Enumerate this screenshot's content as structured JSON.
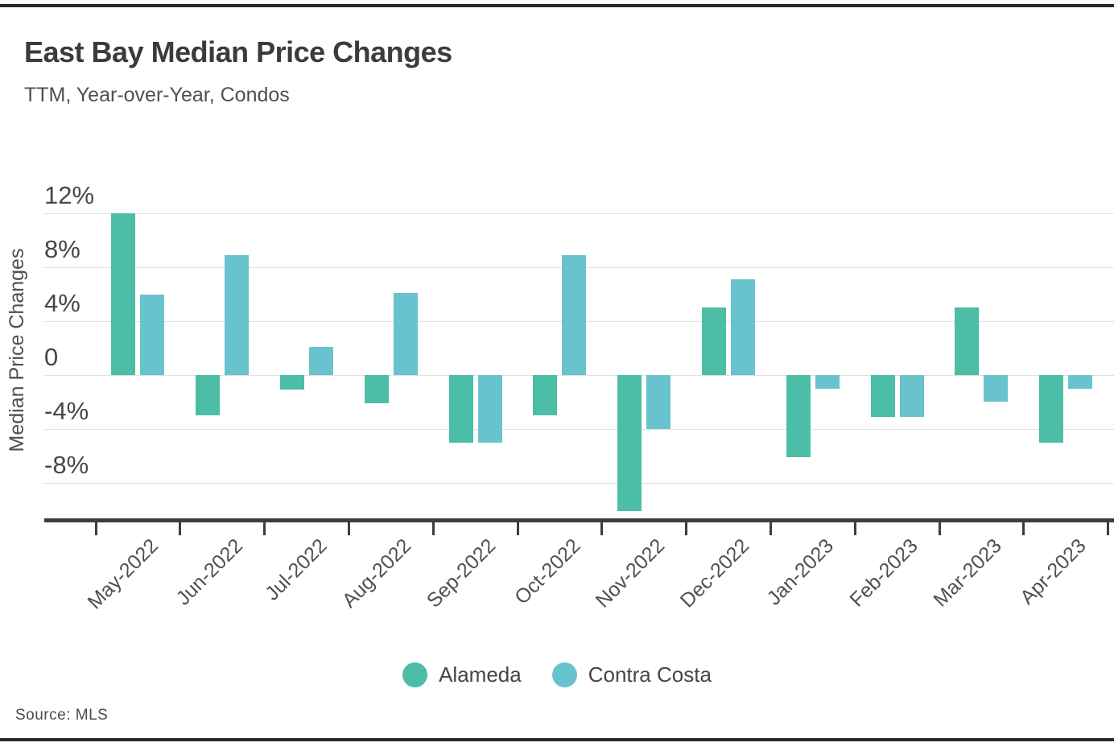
{
  "page": {
    "title": "East Bay Median Price Changes",
    "subtitle": "TTM, Year-over-Year, Condos",
    "source": "Source: MLS"
  },
  "chart_data": {
    "type": "bar",
    "title": "East Bay Median Price Changes",
    "subtitle": "TTM, Year-over-Year, Condos",
    "xlabel": "",
    "ylabel": "Median Price Changes",
    "categories": [
      "May-2022",
      "Jun-2022",
      "Jul-2022",
      "Aug-2022",
      "Sep-2022",
      "Oct-2022",
      "Nov-2022",
      "Dec-2022",
      "Jan-2023",
      "Feb-2023",
      "Mar-2023",
      "Apr-2023"
    ],
    "series": [
      {
        "name": "Alameda",
        "color": "#4cbda7",
        "values": [
          12.0,
          -3.0,
          -1.1,
          -2.1,
          -5.0,
          -3.0,
          -10.1,
          5.0,
          -6.1,
          -3.1,
          5.0,
          -5.0
        ]
      },
      {
        "name": "Contra Costa",
        "color": "#69c3ce",
        "values": [
          6.0,
          8.9,
          2.1,
          6.1,
          -5.0,
          8.9,
          -4.0,
          7.1,
          -1.0,
          -3.1,
          -2.0,
          -1.0
        ]
      }
    ],
    "y_ticks": [
      "12%",
      "8%",
      "4%",
      "0",
      "-4%",
      "-8%"
    ],
    "y_tick_values": [
      12,
      8,
      4,
      0,
      -4,
      -8
    ],
    "unit": "%",
    "ylim": [
      -10.7,
      13.8
    ],
    "grid": true,
    "legend_position": "bottom",
    "source": "Source: MLS"
  }
}
